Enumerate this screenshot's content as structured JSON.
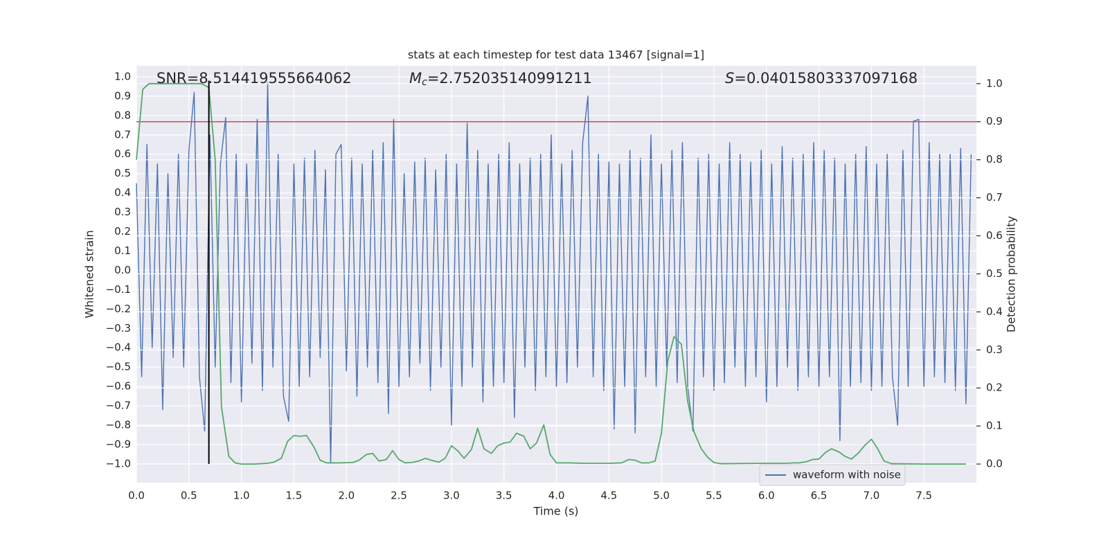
{
  "chart_data": {
    "type": "line",
    "title": "stats at each timestep for test data 13467 [signal=1]",
    "xlabel": "Time (s)",
    "ylabel": "Whitened strain",
    "y2label": "Detection probability",
    "annotations": [
      {
        "symbol": "SNR",
        "text": "=8.514419555664062"
      },
      {
        "symbol": "M",
        "style": "italic",
        "subscript": "c",
        "text": "=2.752035140991211"
      },
      {
        "symbol": "S",
        "style": "italic",
        "text": "=0.04015803337097168"
      }
    ],
    "xlim": [
      0,
      8.0
    ],
    "ylim": [
      -1.097,
      1.057
    ],
    "y2lim": [
      -0.049,
      1.047
    ],
    "xticks": [
      {
        "value": 0,
        "label": "0.0"
      },
      0.5,
      {
        "value": 1,
        "label": "1.0"
      },
      1.5,
      {
        "value": 2,
        "label": "2.0"
      },
      2.5,
      {
        "value": 3,
        "label": "3.0"
      },
      3.5,
      {
        "value": 4,
        "label": "4.0"
      },
      4.5,
      {
        "value": 5,
        "label": "5.0"
      },
      5.5,
      {
        "value": 6,
        "label": "6.0"
      },
      6.5,
      {
        "value": 7,
        "label": "7.0"
      },
      7.5
    ],
    "yticks": [
      {
        "value": -1.0,
        "label": "−1.0"
      },
      {
        "value": -0.9,
        "label": "−0.9"
      },
      {
        "value": -0.8,
        "label": "−0.8"
      },
      {
        "value": -0.7,
        "label": "−0.7"
      },
      {
        "value": -0.6,
        "label": "−0.6"
      },
      {
        "value": -0.5,
        "label": "−0.5"
      },
      {
        "value": -0.4,
        "label": "−0.4"
      },
      {
        "value": -0.3,
        "label": "−0.3"
      },
      {
        "value": -0.2,
        "label": "−0.2"
      },
      {
        "value": -0.1,
        "label": "−0.1"
      },
      {
        "value": 0,
        "label": "0.0"
      },
      0.1,
      0.2,
      0.3,
      0.4,
      0.5,
      0.6,
      0.7,
      0.8,
      0.9,
      {
        "value": 1,
        "label": "1.0"
      }
    ],
    "y2ticks": [
      {
        "value": 0,
        "label": "0.0"
      },
      0.1,
      0.2,
      0.3,
      0.4,
      0.5,
      0.6,
      0.7,
      0.8,
      0.9,
      {
        "value": 1,
        "label": "1.0"
      }
    ],
    "grid": true,
    "legend": "lower right",
    "series": [
      {
        "name": "waveform with noise",
        "color": "#4c72b0",
        "x": [
          0,
          0.05,
          0.1,
          0.15,
          0.2,
          0.25,
          0.3,
          0.35,
          0.4,
          0.45,
          0.5,
          0.55,
          0.6,
          0.65,
          0.7,
          0.75,
          0.8,
          0.85,
          0.9,
          0.95,
          1.0,
          1.05,
          1.1,
          1.15,
          1.2,
          1.25,
          1.3,
          1.35,
          1.4,
          1.45,
          1.5,
          1.55,
          1.6,
          1.65,
          1.7,
          1.75,
          1.8,
          1.85,
          1.9,
          1.95,
          2.0,
          2.05,
          2.1,
          2.15,
          2.2,
          2.25,
          2.3,
          2.35,
          2.4,
          2.45,
          2.5,
          2.55,
          2.6,
          2.65,
          2.7,
          2.75,
          2.8,
          2.85,
          2.9,
          2.95,
          3.0,
          3.05,
          3.1,
          3.15,
          3.2,
          3.25,
          3.3,
          3.35,
          3.4,
          3.45,
          3.5,
          3.55,
          3.6,
          3.65,
          3.7,
          3.75,
          3.8,
          3.85,
          3.9,
          3.95,
          4.0,
          4.05,
          4.1,
          4.15,
          4.2,
          4.25,
          4.3,
          4.35,
          4.4,
          4.45,
          4.5,
          4.55,
          4.6,
          4.65,
          4.7,
          4.75,
          4.8,
          4.85,
          4.9,
          4.95,
          5.0,
          5.05,
          5.1,
          5.15,
          5.2,
          5.25,
          5.3,
          5.35,
          5.4,
          5.45,
          5.5,
          5.55,
          5.6,
          5.65,
          5.7,
          5.75,
          5.8,
          5.85,
          5.9,
          5.95,
          6.0,
          6.05,
          6.1,
          6.15,
          6.2,
          6.25,
          6.3,
          6.35,
          6.4,
          6.45,
          6.5,
          6.55,
          6.6,
          6.65,
          6.7,
          6.75,
          6.8,
          6.85,
          6.9,
          6.95,
          7.0,
          7.05,
          7.1,
          7.15,
          7.2,
          7.25,
          7.3,
          7.35,
          7.4,
          7.45,
          7.5,
          7.55,
          7.6,
          7.65,
          7.7,
          7.75,
          7.8,
          7.85,
          7.9,
          7.95
        ],
        "values": [
          0.45,
          -0.55,
          0.65,
          -0.4,
          0.55,
          -0.72,
          0.5,
          -0.45,
          0.6,
          -0.5,
          0.62,
          0.92,
          -0.55,
          -0.83,
          0.7,
          -0.5,
          0.55,
          0.79,
          -0.58,
          0.6,
          -0.68,
          0.55,
          -0.48,
          0.78,
          -0.62,
          0.97,
          -0.5,
          0.6,
          -0.65,
          -0.78,
          0.55,
          -0.6,
          0.58,
          -0.55,
          0.62,
          -0.45,
          0.52,
          -1.0,
          0.6,
          0.65,
          -0.52,
          0.58,
          -0.65,
          0.55,
          -0.5,
          0.62,
          -0.58,
          0.66,
          -0.74,
          0.78,
          -0.6,
          0.5,
          -0.55,
          0.56,
          -0.48,
          0.58,
          -0.62,
          0.52,
          -0.5,
          0.6,
          -0.8,
          0.55,
          -0.6,
          0.76,
          -0.5,
          0.62,
          -0.68,
          0.55,
          -0.6,
          0.6,
          -0.58,
          0.66,
          -0.76,
          0.55,
          -0.5,
          0.58,
          -0.62,
          0.6,
          -0.55,
          0.7,
          -0.6,
          0.55,
          -0.58,
          0.62,
          -0.5,
          0.66,
          0.9,
          -0.55,
          0.6,
          -0.62,
          0.56,
          -0.82,
          0.55,
          -0.6,
          0.62,
          -0.84,
          0.58,
          -0.55,
          0.7,
          -0.6,
          0.55,
          -0.5,
          0.62,
          -0.58,
          0.66,
          -0.6,
          -0.83,
          0.58,
          -0.55,
          0.6,
          -0.62,
          0.55,
          -0.58,
          0.66,
          -0.5,
          0.6,
          -0.6,
          0.56,
          -0.55,
          0.62,
          -0.68,
          0.55,
          -0.6,
          0.64,
          -0.5,
          0.58,
          -0.62,
          0.6,
          -0.55,
          0.66,
          -0.6,
          0.62,
          -0.55,
          0.58,
          -0.88,
          0.55,
          -0.6,
          0.6,
          -0.58,
          0.64,
          -0.62,
          0.55,
          -0.6,
          0.6,
          -0.55,
          -0.8,
          0.62,
          -0.6,
          0.77,
          0.78,
          -0.6,
          0.66,
          -0.55,
          0.6,
          -0.58,
          0.6,
          -0.62,
          0.63,
          -0.69,
          0.6
        ]
      },
      {
        "color": "#55a868",
        "axis": "y2",
        "x": [
          0,
          0.06,
          0.12,
          0.25,
          0.38,
          0.5,
          0.62,
          0.69,
          0.75,
          0.81,
          0.88,
          0.94,
          1.0,
          1.12,
          1.25,
          1.31,
          1.38,
          1.44,
          1.5,
          1.56,
          1.62,
          1.69,
          1.75,
          1.81,
          1.94,
          2.06,
          2.12,
          2.19,
          2.25,
          2.31,
          2.38,
          2.44,
          2.5,
          2.56,
          2.62,
          2.69,
          2.75,
          2.81,
          2.88,
          2.94,
          3.0,
          3.06,
          3.12,
          3.19,
          3.25,
          3.31,
          3.38,
          3.44,
          3.5,
          3.56,
          3.62,
          3.69,
          3.75,
          3.81,
          3.88,
          3.94,
          4.0,
          4.12,
          4.25,
          4.38,
          4.5,
          4.62,
          4.69,
          4.75,
          4.81,
          4.88,
          4.94,
          5.0,
          5.06,
          5.12,
          5.19,
          5.25,
          5.31,
          5.38,
          5.44,
          5.5,
          5.56,
          6.0,
          6.19,
          6.25,
          6.31,
          6.38,
          6.44,
          6.5,
          6.56,
          6.62,
          6.69,
          6.75,
          6.81,
          6.88,
          6.94,
          7.0,
          7.06,
          7.12,
          7.19,
          7.5,
          7.9
        ],
        "values": [
          0.8,
          0.985,
          1.0,
          1.0,
          1.0,
          1.0,
          1.0,
          0.99,
          0.8,
          0.15,
          0.02,
          0.003,
          0,
          0,
          0.002,
          0.005,
          0.015,
          0.06,
          0.075,
          0.073,
          0.075,
          0.045,
          0.01,
          0.003,
          0.003,
          0.004,
          0.01,
          0.025,
          0.028,
          0.008,
          0.012,
          0.035,
          0.012,
          0.003,
          0.004,
          0.008,
          0.015,
          0.01,
          0.005,
          0.015,
          0.048,
          0.035,
          0.015,
          0.038,
          0.094,
          0.04,
          0.028,
          0.048,
          0.055,
          0.058,
          0.081,
          0.073,
          0.04,
          0.055,
          0.103,
          0.025,
          0.003,
          0.003,
          0.002,
          0.002,
          0.002,
          0.003,
          0.012,
          0.01,
          0.003,
          0.003,
          0.008,
          0.08,
          0.27,
          0.335,
          0.315,
          0.165,
          0.085,
          0.04,
          0.018,
          0.004,
          0.001,
          0.002,
          0.002,
          0.003,
          0.003,
          0.006,
          0.012,
          0.013,
          0.03,
          0.04,
          0.032,
          0.02,
          0.013,
          0.03,
          0.05,
          0.065,
          0.04,
          0.008,
          0.001,
          0,
          0
        ]
      }
    ],
    "hlines": [
      {
        "value": 0.9,
        "axis": "y2",
        "color": "#c44e52"
      }
    ],
    "vlines": [
      {
        "x": 0.69,
        "ymin": -1.0,
        "ymax": 0.98,
        "color": "#000000"
      }
    ]
  }
}
